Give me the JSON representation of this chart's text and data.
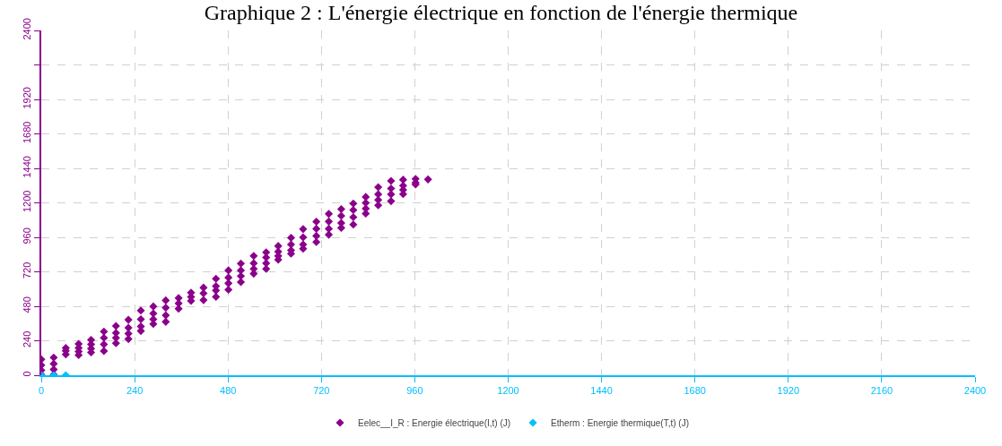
{
  "chart_data": {
    "type": "scatter",
    "title": "Graphique 2 : L'énergie électrique en fonction de l'énergie thermique",
    "series": [
      {
        "name": "Eelec__I_R : Energie électrique(I,t) (J)",
        "color": "#8b008b",
        "x": [
          0,
          0,
          0,
          0,
          32,
          32,
          32,
          32,
          63,
          63,
          63,
          96,
          96,
          96,
          96,
          128,
          128,
          128,
          128,
          161,
          161,
          161,
          161,
          192,
          192,
          192,
          192,
          224,
          224,
          224,
          224,
          256,
          256,
          256,
          256,
          288,
          288,
          288,
          288,
          320,
          320,
          320,
          320,
          353,
          353,
          353,
          385,
          385,
          385,
          417,
          417,
          417,
          449,
          449,
          449,
          449,
          481,
          481,
          481,
          481,
          513,
          513,
          513,
          513,
          546,
          546,
          546,
          546,
          578,
          578,
          578,
          578,
          609,
          609,
          609,
          609,
          642,
          642,
          642,
          642,
          673,
          673,
          673,
          673,
          707,
          707,
          707,
          707,
          739,
          739,
          739,
          739,
          771,
          771,
          771,
          771,
          802,
          802,
          802,
          802,
          834,
          834,
          834,
          834,
          866,
          866,
          866,
          866,
          899,
          899,
          899,
          899,
          930,
          930,
          930,
          930,
          962,
          962,
          962,
          994
        ],
        "values": [
          110,
          70,
          35,
          5,
          123,
          80,
          40,
          5,
          190,
          170,
          145,
          218,
          190,
          165,
          141,
          246,
          215,
          185,
          159,
          304,
          260,
          215,
          169,
          343,
          295,
          260,
          223,
          386,
          330,
          290,
          252,
          450,
          390,
          340,
          308,
          479,
          430,
          390,
          357,
          521,
          470,
          417,
          372,
          537,
          500,
          463,
          575,
          545,
          517,
          610,
          570,
          523,
          672,
          620,
          590,
          546,
          730,
          680,
          640,
          595,
          778,
          730,
          690,
          649,
          831,
          780,
          740,
          707,
          856,
          820,
          780,
          740,
          900,
          860,
          830,
          804,
          957,
          910,
          870,
          846,
          1017,
          960,
          910,
          881,
          1069,
          1020,
          970,
          927,
          1123,
          1070,
          1020,
          978,
          1156,
          1110,
          1060,
          1026,
          1195,
          1150,
          1100,
          1049,
          1241,
          1200,
          1160,
          1125,
          1309,
          1260,
          1220,
          1183,
          1353,
          1300,
          1260,
          1212,
          1361,
          1320,
          1290,
          1261,
          1367,
          1340,
          1328,
          1363
        ]
      },
      {
        "name": "Etherm : Energie thermique(T,t) (J)",
        "color": "#00bfff",
        "x": [
          0,
          32,
          63
        ],
        "values": [
          0,
          0,
          0
        ]
      }
    ],
    "xlim": [
      0,
      2400
    ],
    "xticks": [
      0,
      240,
      480,
      720,
      960,
      1200,
      1440,
      1680,
      1920,
      2160,
      2400
    ],
    "ylim": [
      0,
      2400
    ],
    "yticks": [
      0,
      240,
      480,
      720,
      960,
      1200,
      1440,
      1680,
      1920,
      {
        "value": 2160,
        "label": null
      },
      2400
    ],
    "grid": true,
    "legend": "bottom",
    "marker": "diamond"
  }
}
